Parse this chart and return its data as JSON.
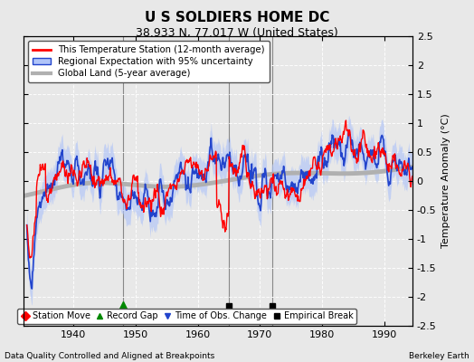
{
  "title": "U S SOLDIERS HOME DC",
  "subtitle": "38.933 N, 77.017 W (United States)",
  "ylabel": "Temperature Anomaly (°C)",
  "xlabel_left": "Data Quality Controlled and Aligned at Breakpoints",
  "xlabel_right": "Berkeley Earth",
  "ylim": [
    -2.5,
    2.5
  ],
  "xlim": [
    1932,
    1994.5
  ],
  "yticks": [
    -2.5,
    -2,
    -1.5,
    -1,
    -0.5,
    0,
    0.5,
    1,
    1.5,
    2,
    2.5
  ],
  "xticks": [
    1940,
    1950,
    1960,
    1970,
    1980,
    1990
  ],
  "bg_color": "#e8e8e8",
  "plot_bg_color": "#e8e8e8",
  "record_gap_x": 1948,
  "empirical_break_x1": 1965,
  "empirical_break_x2": 1972,
  "legend_labels": [
    "This Temperature Station (12-month average)",
    "Regional Expectation with 95% uncertainty",
    "Global Land (5-year average)"
  ],
  "legend_marker_labels": [
    "Station Move",
    "Record Gap",
    "Time of Obs. Change",
    "Empirical Break"
  ]
}
